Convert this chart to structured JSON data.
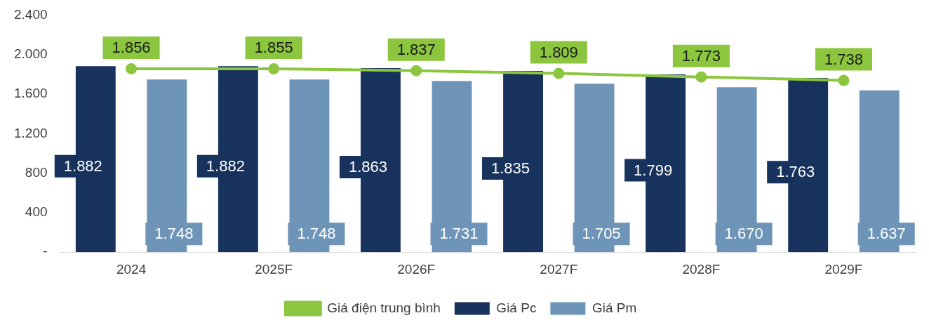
{
  "chart_data": {
    "type": "bar",
    "categories": [
      "2024",
      "2025F",
      "2026F",
      "2027F",
      "2028F",
      "2029F"
    ],
    "series": [
      {
        "name": "Giá Pc",
        "color": "#17325c",
        "values": [
          1882,
          1882,
          1863,
          1835,
          1799,
          1763
        ],
        "value_labels": [
          "1.882",
          "1.882",
          "1.863",
          "1.835",
          "1.799",
          "1.763"
        ]
      },
      {
        "name": "Giá Pm",
        "color": "#6e95b8",
        "values": [
          1748,
          1748,
          1731,
          1705,
          1670,
          1637
        ],
        "value_labels": [
          "1.748",
          "1.748",
          "1.731",
          "1.705",
          "1.670",
          "1.637"
        ]
      },
      {
        "name": "Giá điện trung bình",
        "type": "line",
        "color": "#8cc63f",
        "values": [
          1856,
          1855,
          1837,
          1809,
          1773,
          1738
        ],
        "value_labels": [
          "1.856",
          "1.855",
          "1.837",
          "1.809",
          "1.773",
          "1.738"
        ]
      }
    ],
    "ylim": [
      0,
      2400
    ],
    "yticks": [
      {
        "value": 0,
        "label": "-"
      },
      400,
      800,
      {
        "value": 1200,
        "label": "1.200"
      },
      {
        "value": 1600,
        "label": "1.600"
      },
      {
        "value": 2000,
        "label": "2.000"
      },
      {
        "value": 2400,
        "label": "2.400"
      }
    ],
    "grid": false,
    "legend": "bottom",
    "marker": "circle",
    "line_style": "solid"
  }
}
